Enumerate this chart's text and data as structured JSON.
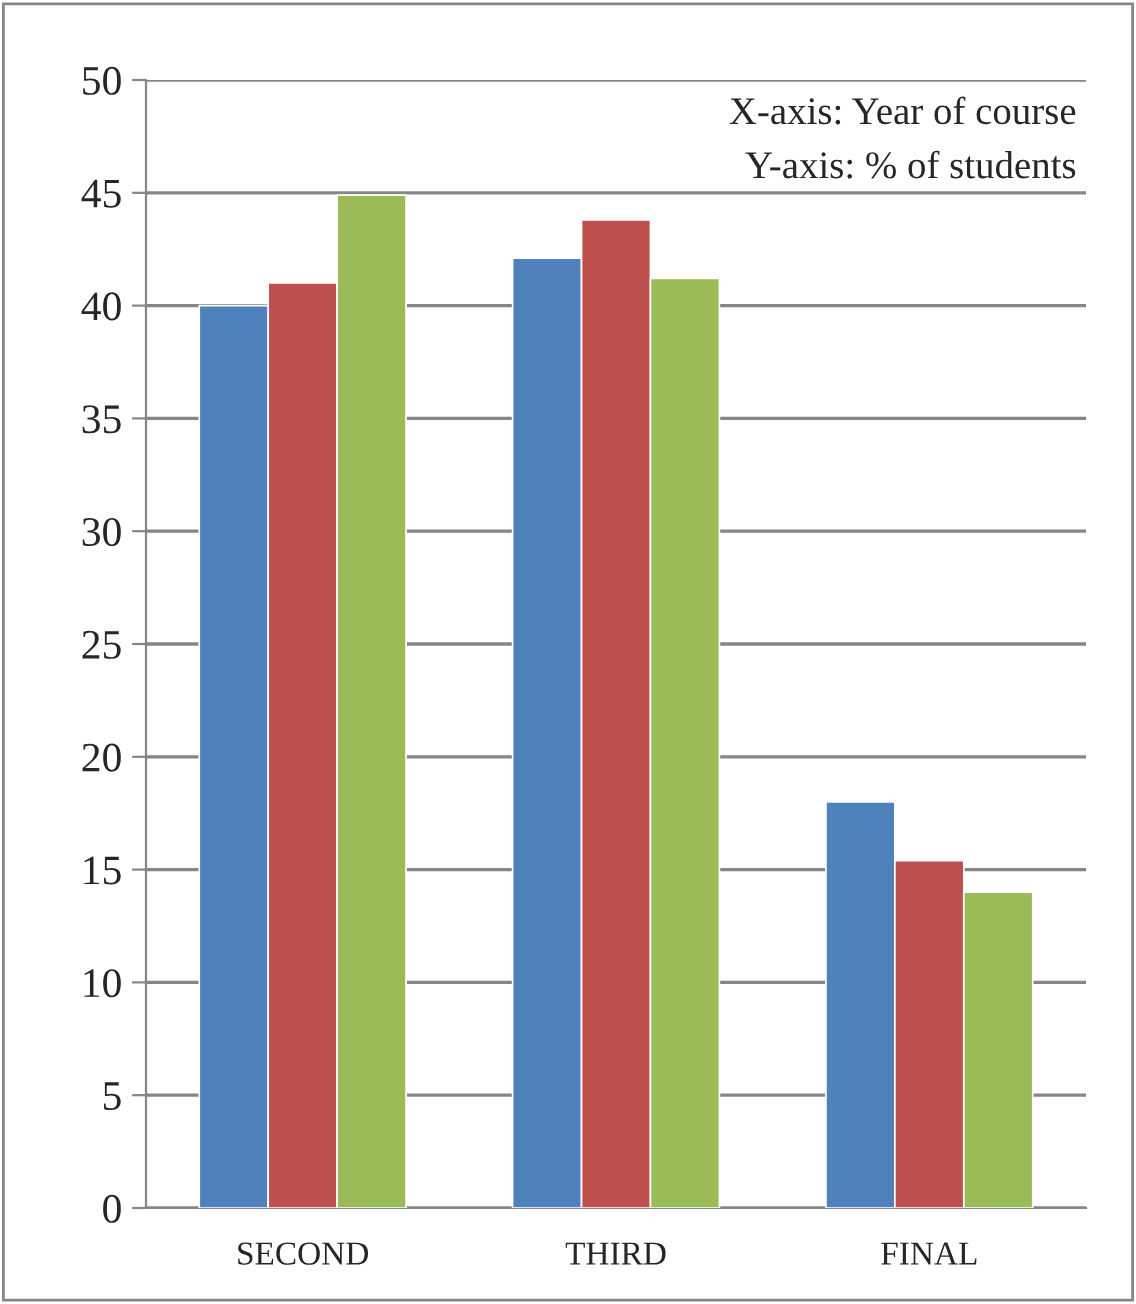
{
  "chart_data": {
    "type": "bar",
    "categories": [
      "SECOND",
      "THIRD",
      "FINAL"
    ],
    "series": [
      {
        "color": "#4f81bd",
        "values": [
          40.0,
          42.1,
          18.0
        ]
      },
      {
        "color": "#c0504d",
        "values": [
          41.0,
          43.8,
          15.4
        ]
      },
      {
        "color": "#9bbb59",
        "values": [
          44.9,
          41.2,
          14.0
        ]
      }
    ],
    "ylim": [
      0,
      50
    ],
    "yticks": [
      0,
      5,
      10,
      15,
      20,
      25,
      30,
      35,
      40,
      45,
      50
    ],
    "grid": "y",
    "legend": false,
    "annotations": [
      "X-axis: Year of course",
      "Y-axis: % of students"
    ]
  }
}
